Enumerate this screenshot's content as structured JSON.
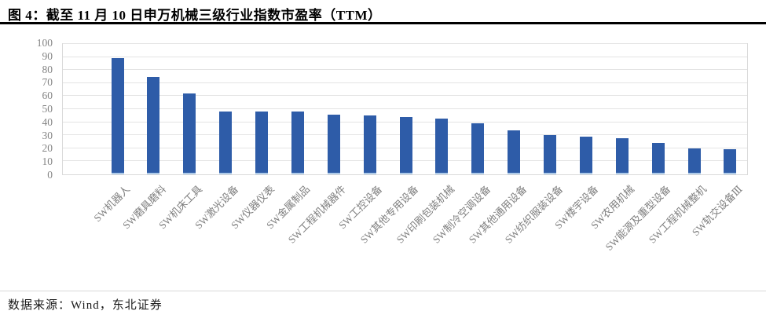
{
  "figure": {
    "title": "图 4：截至 11 月 10 日申万机械三级行业指数市盈率（TTM）"
  },
  "footer": {
    "source": "数据来源：Wind，东北证券"
  },
  "colors": {
    "bar": "#2e5ca8",
    "bar_bottom_edge": "#aecbe9",
    "gridline": "#e4e4e4",
    "plot_border": "#d9d9d9",
    "axis_text": "#7f7f7f",
    "title_text": "#000000",
    "title_rule": "#000000",
    "footer_divider": "#d9d9d9",
    "source_text": "#1a1a1a"
  },
  "chart_data": {
    "type": "bar",
    "title": "截至11月10日申万机械三级行业指数市盈率（TTM）",
    "categories": [
      "SW机器人",
      "SW磨具磨料",
      "SW机床工具",
      "SW激光设备",
      "SW仪器仪表",
      "SW金属制品",
      "SW工程机械器件",
      "SW工控设备",
      "SW其他专用设备",
      "SW印刷包装机械",
      "SW制冷空调设备",
      "SW其他通用设备",
      "SW纺织服装设备",
      "SW楼宇设备",
      "SW农用机械",
      "SW能源及重型设备",
      "SW工程机械整机",
      "SW轨交设备Ⅲ"
    ],
    "values": [
      89,
      75,
      62,
      48,
      48,
      48,
      46,
      45,
      44,
      43,
      39,
      34,
      30,
      29,
      28,
      24,
      20,
      19
    ],
    "xlabel": "",
    "ylabel": "",
    "ylim": [
      0,
      100
    ],
    "ytick_step": 10,
    "ytick_labels": [
      "0",
      "10",
      "20",
      "30",
      "40",
      "50",
      "60",
      "70",
      "80",
      "90",
      "100"
    ],
    "grid": true,
    "legend_position": "none",
    "bar_color": "#2e5ca8",
    "x_tick_label_rotation": 45
  }
}
